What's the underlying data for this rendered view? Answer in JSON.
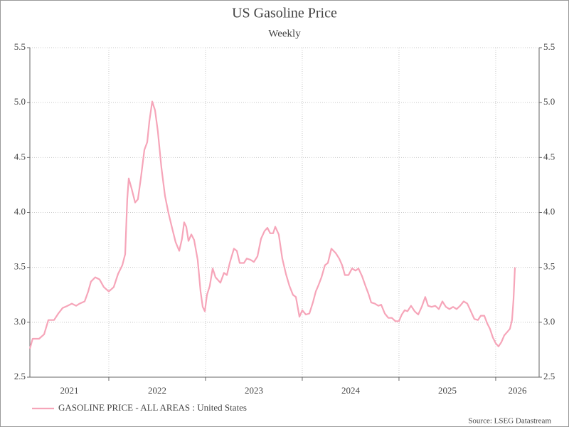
{
  "chart_data": {
    "type": "line",
    "title": "US Gasoline Price",
    "subtitle": "Weekly",
    "source": "Source: LSEG Datastream",
    "x": [
      2021.184,
      2021.213,
      2021.279,
      2021.331,
      2021.375,
      2021.434,
      2021.478,
      2021.522,
      2021.574,
      2021.618,
      2021.662,
      2021.699,
      2021.75,
      2021.787,
      2021.816,
      2021.86,
      2021.904,
      2021.949,
      2022.0,
      2022.051,
      2022.096,
      2022.14,
      2022.169,
      2022.191,
      2022.206,
      2022.235,
      2022.272,
      2022.301,
      2022.331,
      2022.368,
      2022.397,
      2022.419,
      2022.449,
      2022.478,
      2022.507,
      2022.544,
      2022.581,
      2022.618,
      2022.654,
      2022.691,
      2022.728,
      2022.757,
      2022.779,
      2022.801,
      2022.824,
      2022.853,
      2022.882,
      2022.919,
      2022.949,
      2022.971,
      2022.993,
      2023.015,
      2023.044,
      2023.074,
      2023.103,
      2023.154,
      2023.191,
      2023.221,
      2023.25,
      2023.294,
      2023.324,
      2023.353,
      2023.397,
      2023.426,
      2023.463,
      2023.5,
      2023.537,
      2023.574,
      2023.61,
      2023.64,
      2023.669,
      2023.699,
      2023.721,
      2023.757,
      2023.794,
      2023.831,
      2023.868,
      2023.904,
      2023.934,
      2023.971,
      2024.0,
      2024.037,
      2024.074,
      2024.11,
      2024.14,
      2024.169,
      2024.199,
      2024.235,
      2024.265,
      2024.301,
      2024.346,
      2024.382,
      2024.412,
      2024.441,
      2024.478,
      2024.515,
      2024.551,
      2024.581,
      2024.618,
      2024.654,
      2024.684,
      2024.713,
      2024.75,
      2024.787,
      2024.816,
      2024.853,
      2024.89,
      2024.926,
      2024.963,
      2025.0,
      2025.029,
      2025.059,
      2025.088,
      2025.125,
      2025.162,
      2025.199,
      2025.235,
      2025.272,
      2025.301,
      2025.338,
      2025.375,
      2025.412,
      2025.449,
      2025.485,
      2025.522,
      2025.559,
      2025.596,
      2025.632,
      2025.669,
      2025.706,
      2025.743,
      2025.779,
      2025.816,
      2025.846,
      2025.882,
      2025.912,
      2025.941,
      2025.971,
      2026.0,
      2026.029,
      2026.059,
      2026.088,
      2026.118,
      2026.147,
      2026.169,
      2026.184,
      2026.199
    ],
    "series": [
      {
        "name": "GASOLINE PRICE - ALL AREAS : United States",
        "color": "#f6a5b9",
        "values": [
          2.76,
          2.85,
          2.85,
          2.89,
          3.02,
          3.02,
          3.08,
          3.13,
          3.15,
          3.17,
          3.15,
          3.17,
          3.19,
          3.28,
          3.37,
          3.41,
          3.39,
          3.32,
          3.28,
          3.32,
          3.44,
          3.52,
          3.62,
          4.12,
          4.31,
          4.22,
          4.09,
          4.12,
          4.31,
          4.57,
          4.64,
          4.83,
          5.01,
          4.93,
          4.74,
          4.41,
          4.15,
          3.99,
          3.86,
          3.73,
          3.65,
          3.76,
          3.91,
          3.87,
          3.74,
          3.8,
          3.75,
          3.57,
          3.28,
          3.14,
          3.1,
          3.25,
          3.33,
          3.49,
          3.41,
          3.36,
          3.45,
          3.43,
          3.54,
          3.67,
          3.65,
          3.54,
          3.54,
          3.58,
          3.57,
          3.55,
          3.6,
          3.76,
          3.83,
          3.86,
          3.81,
          3.81,
          3.87,
          3.8,
          3.58,
          3.44,
          3.33,
          3.25,
          3.23,
          3.05,
          3.11,
          3.07,
          3.08,
          3.18,
          3.28,
          3.34,
          3.41,
          3.52,
          3.54,
          3.67,
          3.63,
          3.58,
          3.52,
          3.43,
          3.43,
          3.49,
          3.47,
          3.49,
          3.42,
          3.33,
          3.26,
          3.18,
          3.17,
          3.15,
          3.16,
          3.08,
          3.04,
          3.04,
          3.01,
          3.01,
          3.07,
          3.11,
          3.1,
          3.15,
          3.1,
          3.07,
          3.14,
          3.23,
          3.15,
          3.14,
          3.15,
          3.12,
          3.19,
          3.14,
          3.12,
          3.14,
          3.12,
          3.15,
          3.19,
          3.17,
          3.1,
          3.03,
          3.02,
          3.06,
          3.06,
          2.99,
          2.94,
          2.86,
          2.81,
          2.78,
          2.82,
          2.88,
          2.91,
          2.94,
          3.02,
          3.21,
          3.5
        ]
      }
    ],
    "xlim": [
      2021.184,
      2026.449
    ],
    "xticks": [
      2021,
      2022,
      2023,
      2024,
      2025,
      2026
    ],
    "ylim": [
      2.5,
      5.5
    ],
    "yticks": [
      2.5,
      {
        "value": 3,
        "label": "3.0"
      },
      3.5,
      {
        "value": 4,
        "label": "4.0"
      },
      4.5,
      {
        "value": 5,
        "label": "5.0"
      },
      5.5
    ],
    "y2lim": [
      2.5,
      5.5
    ],
    "y2ticks": [
      2.5,
      {
        "value": 3,
        "label": "3.0"
      },
      3.5,
      {
        "value": 4,
        "label": "4.0"
      },
      4.5,
      {
        "value": 5,
        "label": "5.0"
      },
      5.5
    ],
    "grid": true
  }
}
